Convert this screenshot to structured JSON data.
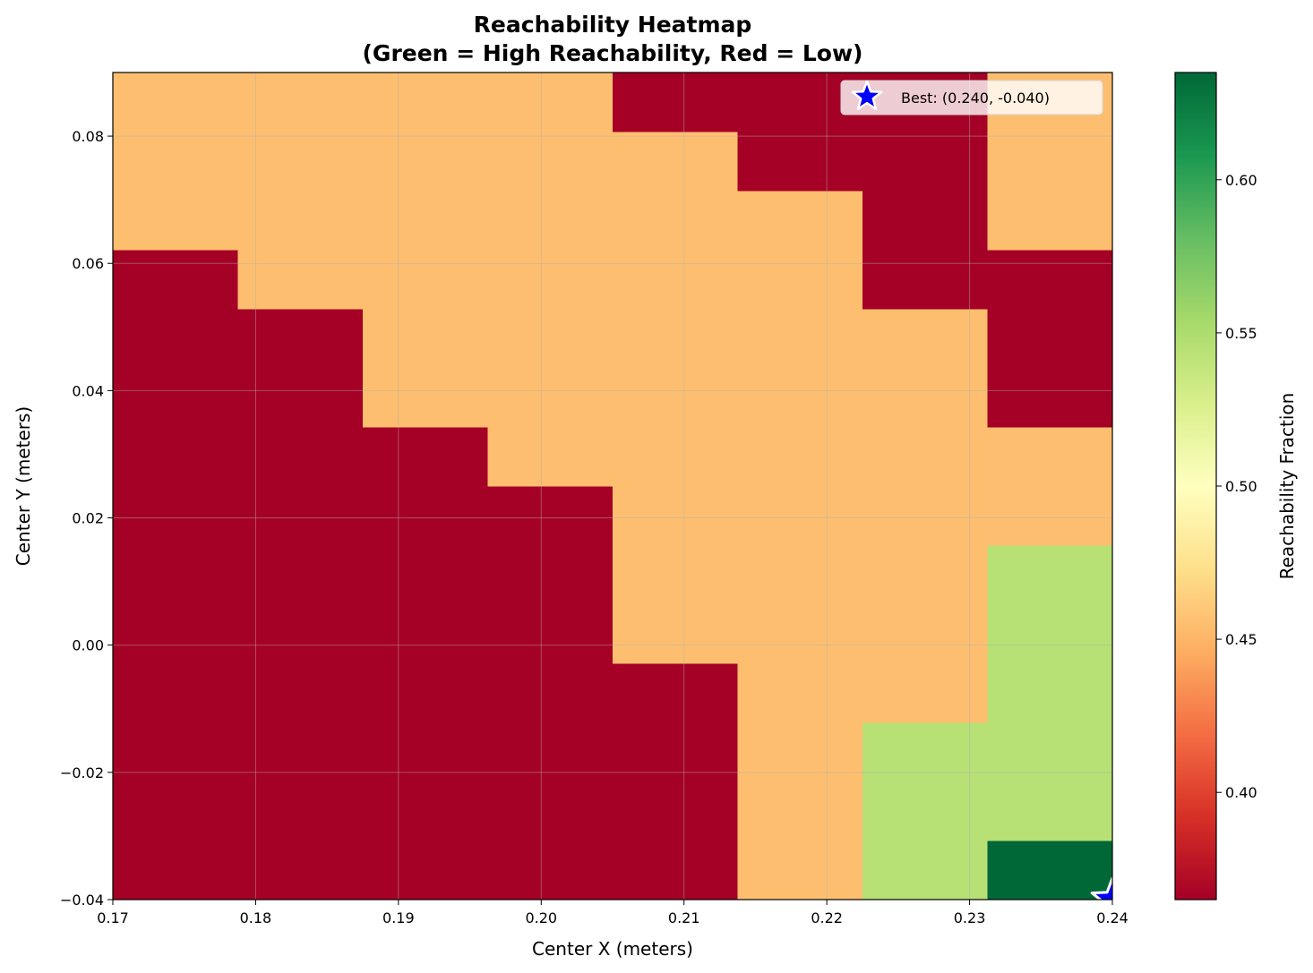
{
  "chart_data": {
    "type": "heatmap",
    "title_line1": "Reachability Heatmap",
    "title_line2": "(Green = High Reachability, Red = Low)",
    "xlabel": "Center X (meters)",
    "ylabel": "Center Y (meters)",
    "colorbar_label": "Reachability Fraction",
    "colormap": "RdYlGn",
    "xlim": [
      0.17,
      0.24
    ],
    "ylim": [
      -0.04,
      0.09
    ],
    "color_range": [
      0.365,
      0.635
    ],
    "x_ticks": [
      0.17,
      0.18,
      0.19,
      0.2,
      0.21,
      0.22,
      0.23,
      0.24
    ],
    "x_tick_labels": [
      "0.17",
      "0.18",
      "0.19",
      "0.20",
      "0.21",
      "0.22",
      "0.23",
      "0.24"
    ],
    "y_ticks": [
      -0.04,
      -0.02,
      0.0,
      0.02,
      0.04,
      0.06,
      0.08
    ],
    "y_tick_labels": [
      "−0.04",
      "−0.02",
      "0.00",
      "0.02",
      "0.04",
      "0.06",
      "0.08"
    ],
    "colorbar_ticks": [
      0.4,
      0.45,
      0.5,
      0.55,
      0.6
    ],
    "colorbar_tick_labels": [
      "0.40",
      "0.45",
      "0.50",
      "0.55",
      "0.60"
    ],
    "grid": true,
    "cell_x_edges": [
      0.17,
      0.17875,
      0.1875,
      0.19625,
      0.205,
      0.21375,
      0.2225,
      0.23125,
      0.24
    ],
    "cell_y_edges": [
      -0.04,
      -0.03071,
      -0.02143,
      -0.01214,
      -0.00286,
      0.00643,
      0.01571,
      0.025,
      0.03429,
      0.04357,
      0.05286,
      0.06214,
      0.07143,
      0.08071,
      0.09
    ],
    "values_rows_bottom_to_top": [
      [
        0.365,
        0.365,
        0.365,
        0.365,
        0.365,
        0.455,
        0.545,
        0.635
      ],
      [
        0.365,
        0.365,
        0.365,
        0.365,
        0.365,
        0.455,
        0.545,
        0.545
      ],
      [
        0.365,
        0.365,
        0.365,
        0.365,
        0.365,
        0.455,
        0.545,
        0.545
      ],
      [
        0.365,
        0.365,
        0.365,
        0.365,
        0.365,
        0.455,
        0.455,
        0.545
      ],
      [
        0.365,
        0.365,
        0.365,
        0.365,
        0.455,
        0.455,
        0.455,
        0.545
      ],
      [
        0.365,
        0.365,
        0.365,
        0.365,
        0.455,
        0.455,
        0.455,
        0.545
      ],
      [
        0.365,
        0.365,
        0.365,
        0.365,
        0.455,
        0.455,
        0.455,
        0.455
      ],
      [
        0.365,
        0.365,
        0.365,
        0.455,
        0.455,
        0.455,
        0.455,
        0.455
      ],
      [
        0.365,
        0.365,
        0.455,
        0.455,
        0.455,
        0.455,
        0.455,
        0.365
      ],
      [
        0.365,
        0.365,
        0.455,
        0.455,
        0.455,
        0.455,
        0.455,
        0.365
      ],
      [
        0.365,
        0.455,
        0.455,
        0.455,
        0.455,
        0.455,
        0.365,
        0.365
      ],
      [
        0.455,
        0.455,
        0.455,
        0.455,
        0.455,
        0.455,
        0.365,
        0.455
      ],
      [
        0.455,
        0.455,
        0.455,
        0.455,
        0.455,
        0.365,
        0.365,
        0.455
      ],
      [
        0.455,
        0.455,
        0.455,
        0.455,
        0.365,
        0.365,
        0.365,
        0.455
      ]
    ],
    "best_point": {
      "x": 0.24,
      "y": -0.04,
      "label": "Best: (0.240, -0.040)",
      "marker": "star-icon",
      "color": "#0000ff"
    },
    "legend_placement": "top-right"
  }
}
